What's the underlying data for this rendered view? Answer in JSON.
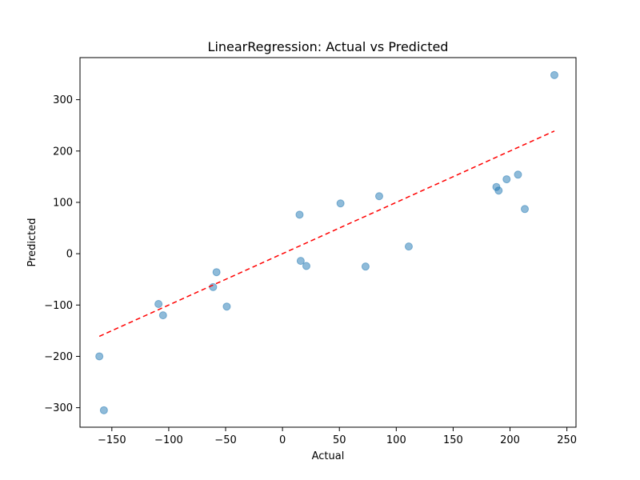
{
  "chart_data": {
    "type": "scatter",
    "title": "LinearRegression: Actual vs Predicted",
    "xlabel": "Actual",
    "ylabel": "Predicted",
    "xlim": [
      -178,
      258
    ],
    "ylim": [
      -338,
      382
    ],
    "xticks": [
      -150,
      -100,
      -50,
      0,
      50,
      100,
      150,
      200,
      250
    ],
    "yticks": [
      -300,
      -200,
      -100,
      0,
      100,
      200,
      300
    ],
    "grid": false,
    "legend": "none",
    "marker_color": "#1f77b4",
    "marker_alpha": 0.5,
    "series": [
      {
        "x": [
          239,
          -161,
          -157,
          -109,
          -105,
          -61,
          -58,
          -49,
          15,
          16,
          21,
          51,
          73,
          85,
          111,
          188,
          190,
          197,
          207,
          213
        ],
        "y": [
          348,
          -200,
          -305,
          -98,
          -120,
          -65,
          -36,
          -103,
          76,
          -14,
          -24,
          98,
          -25,
          112,
          14,
          130,
          123,
          145,
          154,
          87
        ]
      }
    ],
    "reference_line": {
      "x": [
        -161,
        239
      ],
      "y": [
        -161,
        239
      ],
      "color": "#ff0000",
      "style": "dashed"
    }
  }
}
